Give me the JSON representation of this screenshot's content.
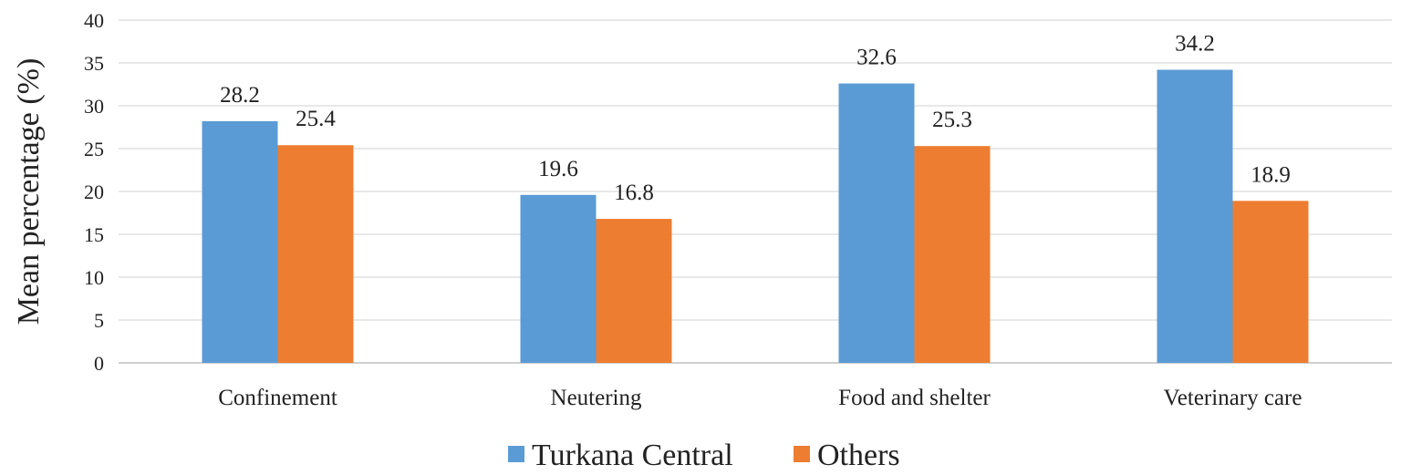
{
  "chart_data": {
    "type": "bar",
    "title": "",
    "xlabel": "",
    "ylabel": "Mean percentage (%)",
    "ylim": [
      0,
      40
    ],
    "yticks": [
      0,
      5,
      10,
      15,
      20,
      25,
      30,
      35,
      40
    ],
    "grid": true,
    "legend_position": "bottom",
    "categories": [
      "Confinement",
      "Neutering",
      "Food and shelter",
      "Veterinary care"
    ],
    "series": [
      {
        "name": "Turkana Central",
        "color": "#5b9bd5",
        "values": [
          28.2,
          19.6,
          32.6,
          34.2
        ],
        "labels": [
          "28.2",
          "19.6",
          "32.6",
          "34.2"
        ]
      },
      {
        "name": "Others",
        "color": "#ed7d31",
        "values": [
          25.4,
          16.8,
          25.3,
          18.9
        ],
        "labels": [
          "25.4",
          "16.8",
          "25.3",
          "18.9"
        ]
      }
    ]
  }
}
